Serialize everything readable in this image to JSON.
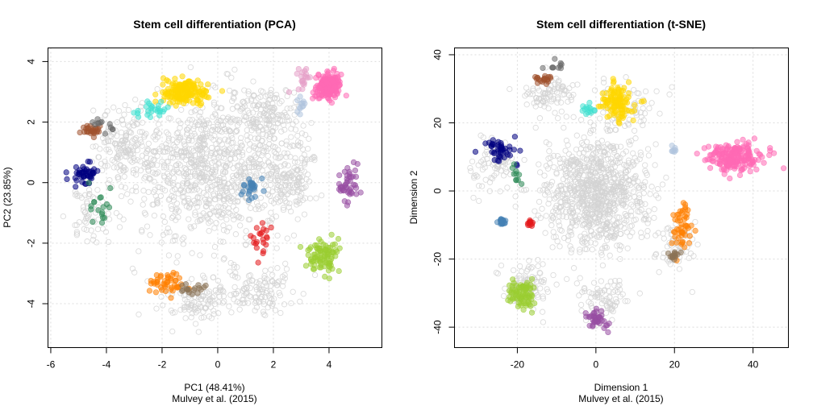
{
  "chart_data": [
    {
      "type": "scatter",
      "title": "Stem cell differentiation (PCA)",
      "xlabel": "PC1 (48.41%)",
      "ylabel": "PC2 (23.85%)",
      "caption": "Mulvey et al. (2015)",
      "xlim": [
        -6.1,
        5.9
      ],
      "ylim": [
        -5.45,
        4.45
      ],
      "xticks": [
        -6,
        -4,
        -2,
        0,
        2,
        4
      ],
      "yticks": [
        -4,
        -2,
        0,
        2,
        4
      ],
      "xtick_labels": [
        "-6",
        "-4",
        "-2",
        "0",
        "2",
        "4"
      ],
      "ytick_labels": [
        "-4",
        "-2",
        "0",
        "2",
        "4"
      ],
      "grid": true,
      "background": {
        "color": "#d3d3d3",
        "blobs": [
          {
            "cx": -0.2,
            "cy": 0.5,
            "sx": 2.6,
            "sy": 2.2,
            "n": 900
          },
          {
            "cx": -3.3,
            "cy": 1.2,
            "sx": 1.0,
            "sy": 1.0,
            "n": 160
          },
          {
            "cx": 1.8,
            "cy": 2.2,
            "sx": 1.1,
            "sy": 0.9,
            "n": 140
          },
          {
            "cx": 2.6,
            "cy": 0.2,
            "sx": 0.9,
            "sy": 1.1,
            "n": 140
          },
          {
            "cx": -0.6,
            "cy": -3.9,
            "sx": 1.3,
            "sy": 0.7,
            "n": 120
          },
          {
            "cx": 1.6,
            "cy": -3.6,
            "sx": 1.1,
            "sy": 0.7,
            "n": 110
          },
          {
            "cx": -4.6,
            "cy": -1.0,
            "sx": 0.7,
            "sy": 0.8,
            "n": 60
          }
        ]
      },
      "series": [
        {
          "name": "gold",
          "color": "#ffd700",
          "cx": -1.2,
          "cy": 3.0,
          "sx": 0.65,
          "sy": 0.35,
          "n": 170
        },
        {
          "name": "pink",
          "color": "#ff69b4",
          "cx": 4.0,
          "cy": 3.2,
          "sx": 0.35,
          "sy": 0.33,
          "n": 210
        },
        {
          "name": "lightpink",
          "color": "#e6a0c8",
          "cx": 3.0,
          "cy": 3.4,
          "sx": 0.25,
          "sy": 0.3,
          "n": 20
        },
        {
          "name": "lightsteelblue",
          "color": "#b0c4de",
          "cx": 3.0,
          "cy": 2.6,
          "sx": 0.2,
          "sy": 0.2,
          "n": 12
        },
        {
          "name": "turquoise",
          "color": "#40e0d0",
          "cx": -2.4,
          "cy": 2.4,
          "sx": 0.5,
          "sy": 0.2,
          "n": 25
        },
        {
          "name": "sienna",
          "color": "#a0522d",
          "cx": -4.6,
          "cy": 1.7,
          "sx": 0.3,
          "sy": 0.15,
          "n": 28
        },
        {
          "name": "dimgray",
          "color": "#696969",
          "cx": -4.1,
          "cy": 1.9,
          "sx": 0.5,
          "sy": 0.2,
          "n": 12
        },
        {
          "name": "navy",
          "color": "#000080",
          "cx": -4.8,
          "cy": 0.3,
          "sx": 0.4,
          "sy": 0.35,
          "n": 45
        },
        {
          "name": "seagreen",
          "color": "#2e8b57",
          "cx": -4.2,
          "cy": -0.8,
          "sx": 0.4,
          "sy": 0.5,
          "n": 18
        },
        {
          "name": "steelblue",
          "color": "#4682b4",
          "cx": 1.2,
          "cy": -0.2,
          "sx": 0.3,
          "sy": 0.28,
          "n": 28
        },
        {
          "name": "red",
          "color": "#e41a1c",
          "cx": 1.5,
          "cy": -1.8,
          "sx": 0.25,
          "sy": 0.45,
          "n": 22
        },
        {
          "name": "purple",
          "color": "#984ea3",
          "cx": 4.7,
          "cy": 0.0,
          "sx": 0.3,
          "sy": 0.6,
          "n": 45
        },
        {
          "name": "yellowgreen",
          "color": "#9acd32",
          "cx": 3.8,
          "cy": -2.4,
          "sx": 0.45,
          "sy": 0.45,
          "n": 90
        },
        {
          "name": "orange",
          "color": "#ff7f00",
          "cx": -1.8,
          "cy": -3.3,
          "sx": 0.55,
          "sy": 0.3,
          "n": 45
        },
        {
          "name": "tan",
          "color": "#8b7355",
          "cx": -1.0,
          "cy": -3.5,
          "sx": 0.35,
          "sy": 0.15,
          "n": 18
        }
      ]
    },
    {
      "type": "scatter",
      "title": "Stem cell differentiation (t-SNE)",
      "xlabel": "Dimension 1",
      "ylabel": "Dimension 2",
      "caption": "Mulvey et al. (2015)",
      "xlim": [
        -36,
        49
      ],
      "ylim": [
        -46,
        42
      ],
      "xticks": [
        -20,
        0,
        20,
        40
      ],
      "yticks": [
        -40,
        -20,
        0,
        20,
        40
      ],
      "xtick_labels": [
        "-20",
        "0",
        "20",
        "40"
      ],
      "ytick_labels": [
        "-40",
        "-20",
        "0",
        "20",
        "40"
      ],
      "grid": true,
      "background": {
        "color": "#d3d3d3",
        "blobs": [
          {
            "cx": 0.0,
            "cy": 0.0,
            "sx": 12.0,
            "sy": 15.0,
            "n": 900
          },
          {
            "cx": -12.0,
            "cy": 28.0,
            "sx": 6.0,
            "sy": 5.0,
            "n": 90
          },
          {
            "cx": -26.0,
            "cy": 8.0,
            "sx": 5.0,
            "sy": 7.0,
            "n": 80
          },
          {
            "cx": 8.0,
            "cy": 25.0,
            "sx": 8.0,
            "sy": 6.0,
            "n": 80
          },
          {
            "cx": -18.0,
            "cy": -28.0,
            "sx": 6.0,
            "sy": 6.0,
            "n": 100
          },
          {
            "cx": 2.0,
            "cy": -32.0,
            "sx": 6.0,
            "sy": 6.0,
            "n": 80
          },
          {
            "cx": 20.0,
            "cy": -15.0,
            "sx": 4.0,
            "sy": 7.0,
            "n": 70
          }
        ]
      },
      "series": [
        {
          "name": "dimgray",
          "color": "#696969",
          "cx": -10.0,
          "cy": 37.0,
          "sx": 2.5,
          "sy": 1.2,
          "n": 10
        },
        {
          "name": "sienna",
          "color": "#a0522d",
          "cx": -13.0,
          "cy": 33.0,
          "sx": 2.0,
          "sy": 1.5,
          "n": 20
        },
        {
          "name": "gold",
          "color": "#ffd700",
          "cx": 5.5,
          "cy": 26.0,
          "sx": 3.5,
          "sy": 4.0,
          "n": 110
        },
        {
          "name": "turquoise",
          "color": "#40e0d0",
          "cx": -1.5,
          "cy": 24.0,
          "sx": 1.2,
          "sy": 1.2,
          "n": 14
        },
        {
          "name": "navy",
          "color": "#000080",
          "cx": -24.0,
          "cy": 12.0,
          "sx": 3.5,
          "sy": 4.0,
          "n": 45
        },
        {
          "name": "seagreen",
          "color": "#2e8b57",
          "cx": -20.0,
          "cy": 3.5,
          "sx": 1.2,
          "sy": 3.0,
          "n": 10
        },
        {
          "name": "lightsteelblue",
          "color": "#b0c4de",
          "cx": 20.0,
          "cy": 12.0,
          "sx": 1.0,
          "sy": 1.0,
          "n": 8
        },
        {
          "name": "pink",
          "color": "#ff69b4",
          "cx": 35.0,
          "cy": 10.0,
          "sx": 5.5,
          "sy": 3.5,
          "n": 210
        },
        {
          "name": "steelblue",
          "color": "#4682b4",
          "cx": -24.0,
          "cy": -9.0,
          "sx": 0.7,
          "sy": 1.0,
          "n": 20
        },
        {
          "name": "red",
          "color": "#e41a1c",
          "cx": -16.5,
          "cy": -9.5,
          "sx": 0.8,
          "sy": 0.6,
          "n": 12
        },
        {
          "name": "orange",
          "color": "#ff7f00",
          "cx": 22.0,
          "cy": -11.0,
          "sx": 2.2,
          "sy": 5.5,
          "n": 50
        },
        {
          "name": "tan",
          "color": "#8b7355",
          "cx": 20.0,
          "cy": -19.0,
          "sx": 1.2,
          "sy": 1.5,
          "n": 14
        },
        {
          "name": "yellowgreen",
          "color": "#9acd32",
          "cx": -19.0,
          "cy": -30.0,
          "sx": 3.2,
          "sy": 4.0,
          "n": 80
        },
        {
          "name": "purple",
          "color": "#984ea3",
          "cx": 0.0,
          "cy": -37.5,
          "sx": 2.5,
          "sy": 2.6,
          "n": 40
        }
      ]
    }
  ]
}
